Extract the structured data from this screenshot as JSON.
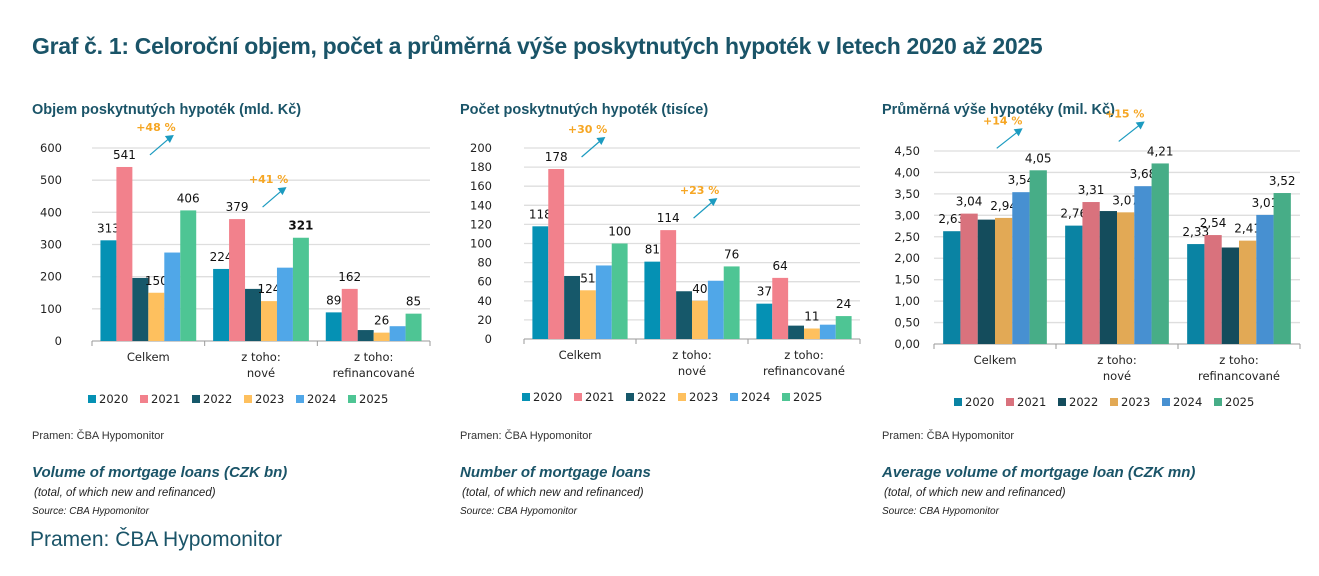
{
  "main_title": "Graf č. 1: Celoroční objem, počet a průměrná výše poskytnutých hypoték v letech 2020 až 2025",
  "footer_source": "Pramen: ČBA Hypomonitor",
  "legend_years": [
    "2020",
    "2021",
    "2022",
    "2023",
    "2024",
    "2025"
  ],
  "chart_data": [
    {
      "type": "bar",
      "title": "Objem poskytnutých hypoték (mld. Kč)",
      "source_cz": "Pramen: ČBA Hypomonitor",
      "title_en": "Volume of mortgage loans (CZK bn)",
      "subtitle_en": "(total, of which new and refinanced)",
      "source_en": "Source: CBA Hypomonitor",
      "categories": [
        [
          "Celkem"
        ],
        [
          "z toho:",
          "nové"
        ],
        [
          "z toho:",
          "refinancované"
        ]
      ],
      "ylim": [
        0,
        600
      ],
      "yticks": [
        0,
        100,
        200,
        300,
        400,
        500,
        600
      ],
      "ytick_labels": [
        "0",
        "100",
        "200",
        "300",
        "400",
        "500",
        "600"
      ],
      "grid": true,
      "legend": "bottom",
      "colors": [
        "#0591b4",
        "#f2818c",
        "#16586a",
        "#fec05e",
        "#50a7e8",
        "#4ec594"
      ],
      "series": [
        {
          "name": "2020",
          "values": [
            313,
            224,
            89
          ],
          "labels": [
            "313",
            "224",
            "89"
          ]
        },
        {
          "name": "2021",
          "values": [
            541,
            379,
            162
          ],
          "labels": [
            "541",
            "379",
            "162"
          ]
        },
        {
          "name": "2022",
          "values": [
            196,
            162,
            34
          ],
          "labels": [
            "",
            "",
            ""
          ]
        },
        {
          "name": "2023",
          "values": [
            150,
            124,
            26
          ],
          "labels": [
            "150",
            "124",
            "26"
          ]
        },
        {
          "name": "2024",
          "values": [
            275,
            228,
            46
          ],
          "labels": [
            "",
            "",
            ""
          ]
        },
        {
          "name": "2025",
          "values": [
            406,
            321,
            85
          ],
          "labels": [
            "406",
            "321",
            "85"
          ]
        }
      ],
      "annotations": [
        {
          "text": "+48 %",
          "category": 0
        },
        {
          "text": "+41 %",
          "category": 1
        }
      ]
    },
    {
      "type": "bar",
      "title": "Počet poskytnutých hypoték (tisíce)",
      "source_cz": "Pramen: ČBA Hypomonitor",
      "title_en": "Number of mortgage loans",
      "subtitle_en": "(total, of which new and refinanced)",
      "source_en": "Source: CBA Hypomonitor",
      "categories": [
        [
          "Celkem"
        ],
        [
          "z toho:",
          "nové"
        ],
        [
          "z toho:",
          "refinancované"
        ]
      ],
      "ylim": [
        0,
        200
      ],
      "yticks": [
        0,
        20,
        40,
        60,
        80,
        100,
        120,
        140,
        160,
        180,
        200
      ],
      "ytick_labels": [
        "0",
        "20",
        "40",
        "60",
        "80",
        "100",
        "120",
        "140",
        "160",
        "180",
        "200"
      ],
      "grid": true,
      "legend": "bottom",
      "colors": [
        "#0591b4",
        "#f2818c",
        "#16586a",
        "#fec05e",
        "#50a7e8",
        "#4ec594"
      ],
      "series": [
        {
          "name": "2020",
          "values": [
            118,
            81,
            37
          ],
          "labels": [
            "118",
            "81",
            "37"
          ]
        },
        {
          "name": "2021",
          "values": [
            178,
            114,
            64
          ],
          "labels": [
            "178",
            "114",
            "64"
          ]
        },
        {
          "name": "2022",
          "values": [
            66,
            50,
            14
          ],
          "labels": [
            "",
            "",
            ""
          ]
        },
        {
          "name": "2023",
          "values": [
            51,
            40,
            11
          ],
          "labels": [
            "51",
            "40",
            "11"
          ]
        },
        {
          "name": "2024",
          "values": [
            77,
            61,
            15
          ],
          "labels": [
            "",
            "",
            ""
          ]
        },
        {
          "name": "2025",
          "values": [
            100,
            76,
            24
          ],
          "labels": [
            "100",
            "76",
            "24"
          ]
        }
      ],
      "annotations": [
        {
          "text": "+30 %",
          "category": 0
        },
        {
          "text": "+23 %",
          "category": 1
        }
      ]
    },
    {
      "type": "bar",
      "title": "Průměrná výše hypotéky (mil. Kč)",
      "source_cz": "Pramen: ČBA Hypomonitor",
      "title_en": "Average volume of mortgage loan (CZK mn)",
      "subtitle_en": "(total, of which new and refinanced)",
      "source_en": "Source: CBA Hypomonitor",
      "categories": [
        [
          "Celkem"
        ],
        [
          "z toho:",
          "nové"
        ],
        [
          "z toho:",
          "refinancované"
        ]
      ],
      "ylim": [
        0,
        4.5
      ],
      "yticks": [
        0,
        0.5,
        1,
        1.5,
        2,
        2.5,
        3,
        3.5,
        4,
        4.5
      ],
      "ytick_labels": [
        "0,00",
        "0,50",
        "1,00",
        "1,50",
        "2,00",
        "2,50",
        "3,00",
        "3,50",
        "4,00",
        "4,50"
      ],
      "grid": true,
      "legend": "bottom",
      "colors": [
        "#0a83a3",
        "#d9727d",
        "#144c5c",
        "#e2a955",
        "#4790d1",
        "#47ad87"
      ],
      "series": [
        {
          "name": "2020",
          "values": [
            2.63,
            2.76,
            2.33
          ],
          "labels": [
            "2,63",
            "2,76",
            "2,33"
          ]
        },
        {
          "name": "2021",
          "values": [
            3.04,
            3.31,
            2.54
          ],
          "labels": [
            "3,04",
            "3,31",
            "2,54"
          ]
        },
        {
          "name": "2022",
          "values": [
            2.9,
            3.1,
            2.25
          ],
          "labels": [
            "",
            "",
            ""
          ]
        },
        {
          "name": "2023",
          "values": [
            2.94,
            3.07,
            2.41
          ],
          "labels": [
            "2,94",
            "3,07",
            "2,41"
          ]
        },
        {
          "name": "2024",
          "values": [
            3.54,
            3.68,
            3.01
          ],
          "labels": [
            "3,54",
            "3,68",
            "3,01"
          ]
        },
        {
          "name": "2025",
          "values": [
            4.05,
            4.21,
            3.52
          ],
          "labels": [
            "4,05",
            "4,21",
            "3,52"
          ]
        }
      ],
      "annotations": [
        {
          "text": "+14 %",
          "category": 0
        },
        {
          "text": "+15 %",
          "category": 1
        }
      ]
    }
  ]
}
